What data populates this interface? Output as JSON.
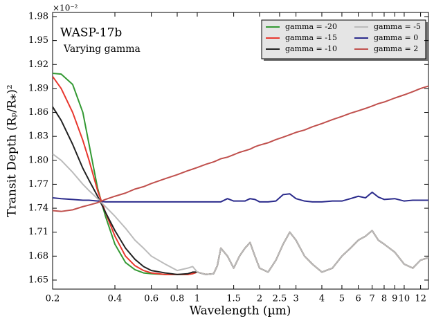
{
  "chart_data": {
    "type": "line",
    "title": "WASP-17b",
    "subtitle": "Varying gamma",
    "x_label": "Wavelength (µm)",
    "y_label": "Transit Depth (Rₚ/R⁎)²",
    "y_offset_label": "×10⁻²",
    "x_scale": "log",
    "legend": "upper right",
    "xlim": [
      0.2,
      13.1
    ],
    "ylim": [
      1.6387,
      1.9852
    ],
    "xticks": [
      0.2,
      0.4,
      0.6,
      0.8,
      1,
      1.5,
      2,
      2.5,
      3,
      4,
      5,
      6,
      7,
      8,
      9,
      10,
      12
    ],
    "yticks": [
      1.65,
      1.68,
      1.71,
      1.74,
      1.77,
      {
        "value": 1.8,
        "label": "1.80"
      },
      1.83,
      1.86,
      1.89,
      1.92,
      1.95,
      1.98
    ],
    "x": [
      0.2,
      0.22,
      0.25,
      0.28,
      0.3,
      0.33,
      0.36,
      0.4,
      0.45,
      0.5,
      0.55,
      0.6,
      0.7,
      0.8,
      0.9,
      0.95,
      1.0,
      1.1,
      1.2,
      1.25,
      1.3,
      1.4,
      1.5,
      1.6,
      1.7,
      1.8,
      1.9,
      2.0,
      2.2,
      2.4,
      2.6,
      2.8,
      3.0,
      3.3,
      3.6,
      4.0,
      4.5,
      5,
      5.5,
      6,
      6.5,
      7,
      7.5,
      8,
      9,
      10,
      11,
      12,
      13.1
    ],
    "series": [
      {
        "name": "gamma = -20",
        "color": "#339933",
        "values": [
          1.909,
          1.908,
          1.895,
          1.86,
          1.82,
          1.765,
          1.73,
          1.695,
          1.672,
          1.663,
          1.659,
          1.658,
          1.657,
          1.657,
          1.657,
          1.658,
          1.66,
          1.657,
          1.658,
          1.668,
          1.69,
          1.68,
          1.665,
          1.68,
          1.69,
          1.697,
          1.68,
          1.665,
          1.66,
          1.675,
          1.695,
          1.71,
          1.7,
          1.68,
          1.67,
          1.66,
          1.665,
          1.68,
          1.69,
          1.7,
          1.705,
          1.712,
          1.7,
          1.695,
          1.685,
          1.67,
          1.665,
          1.675,
          1.678
        ]
      },
      {
        "name": "gamma = -15",
        "color": "#e8372e",
        "values": [
          1.905,
          1.89,
          1.86,
          1.825,
          1.8,
          1.762,
          1.735,
          1.705,
          1.68,
          1.668,
          1.662,
          1.659,
          1.657,
          1.657,
          1.657,
          1.658,
          1.66,
          1.657,
          1.658,
          1.668,
          1.69,
          1.68,
          1.665,
          1.68,
          1.69,
          1.697,
          1.68,
          1.665,
          1.66,
          1.675,
          1.695,
          1.71,
          1.7,
          1.68,
          1.67,
          1.66,
          1.665,
          1.68,
          1.69,
          1.7,
          1.705,
          1.712,
          1.7,
          1.695,
          1.685,
          1.67,
          1.665,
          1.675,
          1.678
        ]
      },
      {
        "name": "gamma = -10",
        "color": "#222222",
        "values": [
          1.867,
          1.85,
          1.82,
          1.79,
          1.775,
          1.755,
          1.735,
          1.712,
          1.69,
          1.676,
          1.667,
          1.662,
          1.659,
          1.657,
          1.658,
          1.66,
          1.66,
          1.657,
          1.658,
          1.668,
          1.69,
          1.68,
          1.665,
          1.68,
          1.69,
          1.697,
          1.68,
          1.665,
          1.66,
          1.675,
          1.695,
          1.71,
          1.7,
          1.68,
          1.67,
          1.66,
          1.665,
          1.68,
          1.69,
          1.7,
          1.705,
          1.712,
          1.7,
          1.695,
          1.685,
          1.67,
          1.665,
          1.675,
          1.678
        ]
      },
      {
        "name": "gamma = -5",
        "color": "#bbbbbb",
        "values": [
          1.808,
          1.8,
          1.785,
          1.77,
          1.762,
          1.752,
          1.742,
          1.73,
          1.715,
          1.7,
          1.69,
          1.68,
          1.67,
          1.662,
          1.665,
          1.667,
          1.66,
          1.657,
          1.658,
          1.668,
          1.69,
          1.68,
          1.665,
          1.68,
          1.69,
          1.697,
          1.68,
          1.665,
          1.66,
          1.675,
          1.695,
          1.71,
          1.7,
          1.68,
          1.67,
          1.66,
          1.665,
          1.68,
          1.69,
          1.7,
          1.705,
          1.712,
          1.7,
          1.695,
          1.685,
          1.67,
          1.665,
          1.675,
          1.678
        ]
      },
      {
        "name": "gamma = 0",
        "color": "#2b2b8c",
        "values": [
          1.753,
          1.752,
          1.751,
          1.75,
          1.75,
          1.749,
          1.748,
          1.748,
          1.748,
          1.748,
          1.748,
          1.748,
          1.748,
          1.748,
          1.748,
          1.748,
          1.748,
          1.748,
          1.748,
          1.748,
          1.748,
          1.752,
          1.749,
          1.749,
          1.749,
          1.752,
          1.751,
          1.748,
          1.748,
          1.749,
          1.757,
          1.758,
          1.752,
          1.749,
          1.748,
          1.748,
          1.749,
          1.749,
          1.752,
          1.755,
          1.753,
          1.76,
          1.754,
          1.751,
          1.752,
          1.749,
          1.75,
          1.75,
          1.75
        ]
      },
      {
        "name": "gamma = 2",
        "color": "#c0504d",
        "values": [
          1.737,
          1.736,
          1.738,
          1.742,
          1.744,
          1.747,
          1.751,
          1.755,
          1.759,
          1.764,
          1.767,
          1.771,
          1.777,
          1.782,
          1.787,
          1.789,
          1.791,
          1.795,
          1.798,
          1.8,
          1.802,
          1.804,
          1.807,
          1.81,
          1.812,
          1.814,
          1.817,
          1.819,
          1.822,
          1.826,
          1.829,
          1.832,
          1.835,
          1.838,
          1.842,
          1.846,
          1.851,
          1.855,
          1.859,
          1.862,
          1.865,
          1.868,
          1.871,
          1.873,
          1.878,
          1.882,
          1.886,
          1.89,
          1.893
        ]
      }
    ]
  }
}
